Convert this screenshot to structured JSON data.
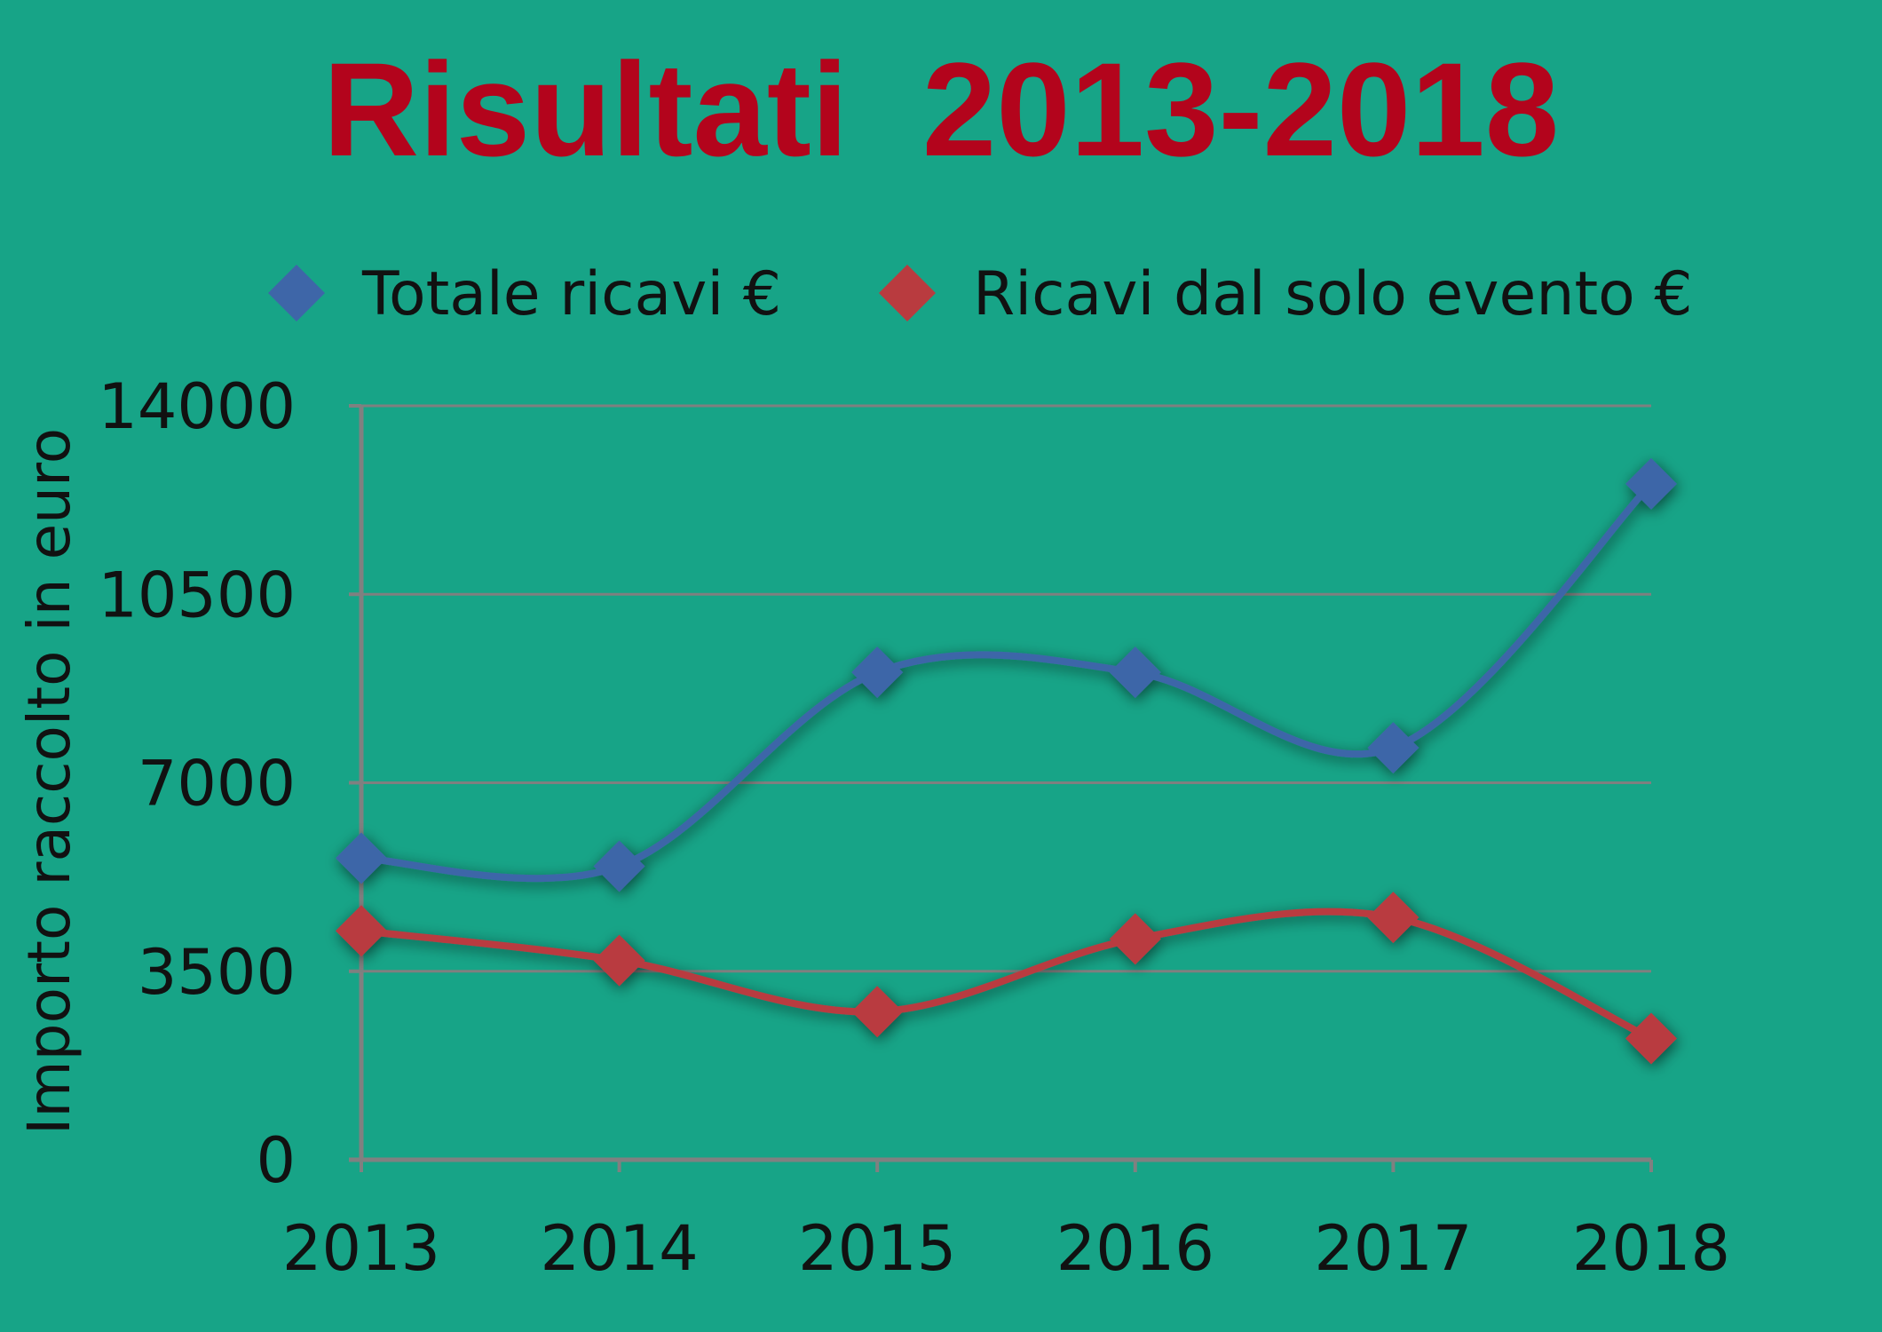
{
  "chart_data": {
    "type": "line",
    "title": "Risultati  2013-2018",
    "xlabel": "",
    "ylabel": "Importo raccolto in euro",
    "categories": [
      "2013",
      "2014",
      "2015",
      "2016",
      "2017",
      "2018"
    ],
    "series": [
      {
        "name": "Totale ricavi €",
        "color": "#3e66a8",
        "values": [
          5600,
          5450,
          9050,
          9050,
          7650,
          12550
        ]
      },
      {
        "name": "Ricavi dal solo evento €",
        "color": "#b93b3f",
        "values": [
          4250,
          3700,
          2750,
          4100,
          4500,
          2250
        ]
      }
    ],
    "ylim": [
      0,
      14000
    ],
    "yticks": [
      "0",
      "3500",
      "7000",
      "10500",
      "14000"
    ],
    "grid": true,
    "legend_position": "top",
    "smooth": true,
    "marker": "diamond"
  },
  "colors": {
    "background": "#17a487",
    "title": "#b3041c",
    "gridline": "#7f7f7f",
    "axis": "#808080",
    "text": "#111111"
  }
}
